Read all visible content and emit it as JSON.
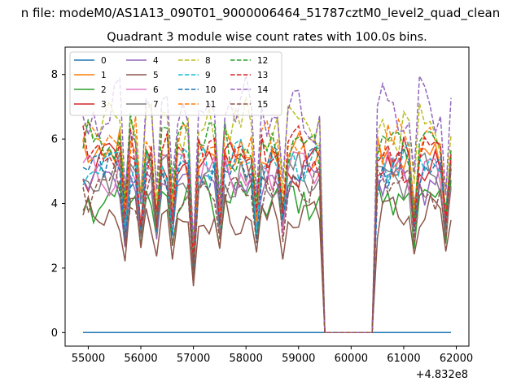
{
  "chart_data": {
    "type": "line",
    "suptitle": "n file: modeM0/AS1A13_090T01_9000006464_51787cztM0_level2_quad_clean",
    "title": "Quadrant 3 module wise count rates with 100.0s bins.",
    "xlabel": "",
    "ylabel": "",
    "x_offset_label": "+4.832e8",
    "xlim": [
      54560,
      62240
    ],
    "ylim": [
      -0.42,
      8.85
    ],
    "xticks": [
      55000,
      56000,
      57000,
      58000,
      59000,
      60000,
      61000,
      62000
    ],
    "yticks": [
      0,
      2,
      4,
      6,
      8
    ],
    "legend_position": "upper-left",
    "grid": false,
    "x_start": 54900,
    "x_step": 100,
    "n_points": 71,
    "series": [
      {
        "name": "0",
        "color": "#1f77b4",
        "dash": "solid",
        "base": 0.0,
        "amp": 0
      },
      {
        "name": "1",
        "color": "#ff7f0e",
        "dash": "solid",
        "base": 5.5,
        "amp": 0.6
      },
      {
        "name": "2",
        "color": "#2ca02c",
        "dash": "solid",
        "base": 4.2,
        "amp": 0.5
      },
      {
        "name": "3",
        "color": "#d62728",
        "dash": "solid",
        "base": 5.3,
        "amp": 0.6
      },
      {
        "name": "4",
        "color": "#9467bd",
        "dash": "solid",
        "base": 4.7,
        "amp": 0.5
      },
      {
        "name": "5",
        "color": "#8c564b",
        "dash": "solid",
        "base": 3.6,
        "amp": 0.5
      },
      {
        "name": "6",
        "color": "#e377c2",
        "dash": "solid",
        "base": 5.0,
        "amp": 0.5
      },
      {
        "name": "7",
        "color": "#7f7f7f",
        "dash": "solid",
        "base": 4.9,
        "amp": 0.5
      },
      {
        "name": "8",
        "color": "#bcbd22",
        "dash": "dashed",
        "base": 6.4,
        "amp": 0.6
      },
      {
        "name": "9",
        "color": "#17becf",
        "dash": "dashed",
        "base": 5.3,
        "amp": 0.5
      },
      {
        "name": "10",
        "color": "#1f77b4",
        "dash": "dashed",
        "base": 5.0,
        "amp": 0.5
      },
      {
        "name": "11",
        "color": "#ff7f0e",
        "dash": "dashed",
        "base": 5.8,
        "amp": 0.6
      },
      {
        "name": "12",
        "color": "#2ca02c",
        "dash": "dashed",
        "base": 5.9,
        "amp": 0.6
      },
      {
        "name": "13",
        "color": "#d62728",
        "dash": "dashed",
        "base": 5.6,
        "amp": 0.6
      },
      {
        "name": "14",
        "color": "#9467bd",
        "dash": "dashed",
        "base": 6.9,
        "amp": 0.7
      },
      {
        "name": "15",
        "color": "#8c564b",
        "dash": "dashed",
        "base": 4.5,
        "amp": 0.5
      }
    ],
    "dip_x": [
      55700,
      56000,
      56300,
      56600,
      57000,
      57500,
      58200,
      58700,
      61200,
      61800
    ],
    "gap_x_range": [
      59500,
      60400
    ],
    "gap_value": 0,
    "series_0_values": "all 0"
  }
}
